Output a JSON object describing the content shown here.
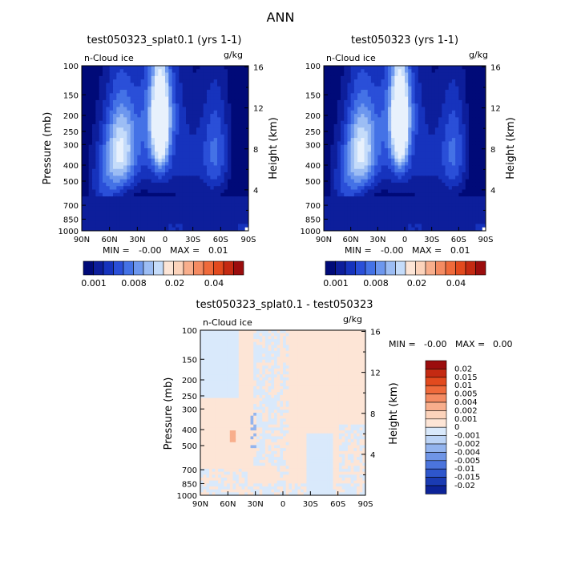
{
  "page_title": "ANN",
  "colors": {
    "blue_scale": [
      "#000a78",
      "#0d1e9b",
      "#1633bd",
      "#2a4fd8",
      "#4472e6",
      "#6d97ee",
      "#9cbdf4",
      "#c5dcfa",
      "#e8f1fc"
    ],
    "diff_scale": [
      "#ffffff",
      "#9b0d0d",
      "#c42a12",
      "#e24a1e",
      "#ef6a3b",
      "#f48b62",
      "#f8ae8c",
      "#fcd3bb",
      "#fde5d6",
      "#d9e9fb",
      "#bcd4f6",
      "#93b4ee",
      "#6f95e6",
      "#4b74dc",
      "#2e56cc",
      "#1a3bb3",
      "#0c2398"
    ]
  },
  "chart_data": [
    {
      "type": "heatmap",
      "title": "test050323_splat0.1 (yrs 1-1)",
      "variable": "n-Cloud ice",
      "units": "g/kg",
      "ylabel": "Pressure (mb)",
      "ylabel_right": "Height (km)",
      "x_ticks": [
        "90N",
        "60N",
        "30N",
        "0",
        "30S",
        "60S",
        "90S"
      ],
      "y_ticks": [
        "100",
        "150",
        "200",
        "250",
        "300",
        "400",
        "500",
        "700",
        "850",
        "1000"
      ],
      "height_ticks": [
        "16",
        "12",
        "8",
        "4"
      ],
      "min_label": "MIN =",
      "min_value": "-0.00",
      "max_label": "MAX =",
      "max_value": "0.01",
      "colorbar_labels": [
        "0.001",
        "0.008",
        "0.02",
        "0.04"
      ],
      "blobs": [
        {
          "lat": 47,
          "p": 320,
          "amp": 7.5,
          "slat": 17,
          "sp": 210
        },
        {
          "lat": 5,
          "p": 240,
          "amp": 8.2,
          "slat": 9,
          "sp": 160
        },
        {
          "lat": 12,
          "p": 290,
          "amp": 3.0,
          "slat": 22,
          "sp": 260
        },
        {
          "lat": 5,
          "p": 170,
          "amp": 3.0,
          "slat": 20,
          "sp": 120
        },
        {
          "lat": -55,
          "p": 330,
          "amp": 3.8,
          "slat": 15,
          "sp": 240
        },
        {
          "lat": 65,
          "p": 520,
          "amp": 3.0,
          "slat": 18,
          "sp": 300
        },
        {
          "lat": -25,
          "p": 380,
          "amp": 2.0,
          "slat": 25,
          "sp": 280
        }
      ]
    },
    {
      "type": "heatmap",
      "title": "test050323 (yrs 1-1)",
      "variable": "n-Cloud ice",
      "units": "g/kg",
      "ylabel": "Pressure (mb)",
      "ylabel_right": "Height (km)",
      "x_ticks": [
        "90N",
        "60N",
        "30N",
        "0",
        "30S",
        "60S",
        "90S"
      ],
      "y_ticks": [
        "100",
        "150",
        "200",
        "250",
        "300",
        "400",
        "500",
        "700",
        "850",
        "1000"
      ],
      "height_ticks": [
        "16",
        "12",
        "8",
        "4"
      ],
      "min_label": "MIN =",
      "min_value": "-0.00",
      "max_label": "MAX =",
      "max_value": "0.01",
      "colorbar_labels": [
        "0.001",
        "0.008",
        "0.02",
        "0.04"
      ],
      "blobs": [
        {
          "lat": 47,
          "p": 320,
          "amp": 7.5,
          "slat": 17,
          "sp": 210
        },
        {
          "lat": 5,
          "p": 240,
          "amp": 8.2,
          "slat": 9,
          "sp": 160
        },
        {
          "lat": 12,
          "p": 290,
          "amp": 3.0,
          "slat": 22,
          "sp": 260
        },
        {
          "lat": 5,
          "p": 170,
          "amp": 3.0,
          "slat": 20,
          "sp": 120
        },
        {
          "lat": -55,
          "p": 330,
          "amp": 3.8,
          "slat": 15,
          "sp": 240
        },
        {
          "lat": 65,
          "p": 520,
          "amp": 3.0,
          "slat": 18,
          "sp": 300
        },
        {
          "lat": -25,
          "p": 380,
          "amp": 2.0,
          "slat": 25,
          "sp": 280
        }
      ]
    },
    {
      "type": "heatmap",
      "title": "test050323_splat0.1 - test050323",
      "variable": "n-Cloud ice",
      "units": "g/kg",
      "ylabel": "Pressure (mb)",
      "ylabel_right": "Height (km)",
      "x_ticks": [
        "90N",
        "60N",
        "30N",
        "0",
        "30S",
        "60S",
        "90S"
      ],
      "y_ticks": [
        "100",
        "150",
        "200",
        "250",
        "300",
        "400",
        "500",
        "700",
        "850",
        "1000"
      ],
      "height_ticks": [
        "16",
        "12",
        "8",
        "4"
      ],
      "min_label": "MIN =",
      "min_value": "-0.00",
      "max_label": "MAX =",
      "max_value": "0.00",
      "colorbar_labels": [
        "0.02",
        "0.015",
        "0.01",
        "0.005",
        "0.004",
        "0.002",
        "0.001",
        "0",
        "-0.001",
        "-0.002",
        "-0.004",
        "-0.005",
        "-0.01",
        "-0.015",
        "-0.02"
      ]
    }
  ]
}
